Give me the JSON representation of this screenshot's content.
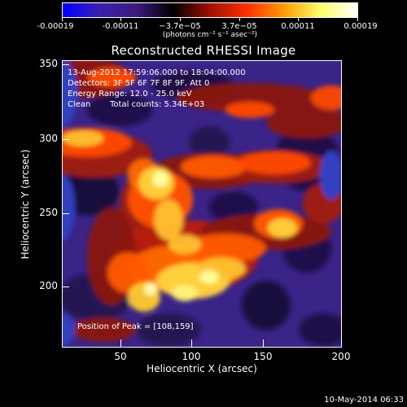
{
  "colorbar": {
    "tick_labels": [
      "-0.00019",
      "-0.00011",
      "−3.7e−05",
      "3.7e−05",
      "0.00011",
      "0.00019"
    ],
    "units": "(photons cm⁻² s⁻¹ asec⁻²)",
    "colors": [
      "#0000ff",
      "#3a1fb0",
      "#3d1a7c",
      "#000000",
      "#a01000",
      "#ff3000",
      "#ff9a00",
      "#ffff66",
      "#ffffff"
    ]
  },
  "title": "Reconstructed RHESSI Image",
  "info": {
    "time_range": "13-Aug-2012 17:59:06.000 to 18:04:00.000",
    "detectors": "Detectors: 3F 5F 6F 7F 8F 9F, Att 0",
    "energy": "Energy Range: 12.0 - 25.0 keV",
    "method": "Clean",
    "counts": "Total counts: 5.34E+03",
    "peak": "Position of Peak = [108,159]"
  },
  "axes": {
    "xlabel": "Heliocentric X (arcsec)",
    "ylabel": "Heliocentric Y (arcsec)",
    "xticks": [
      "50",
      "100",
      "150",
      "200"
    ],
    "yticks": [
      "200",
      "250",
      "300",
      "350"
    ]
  },
  "footer": "10-May-2014 06:33"
}
